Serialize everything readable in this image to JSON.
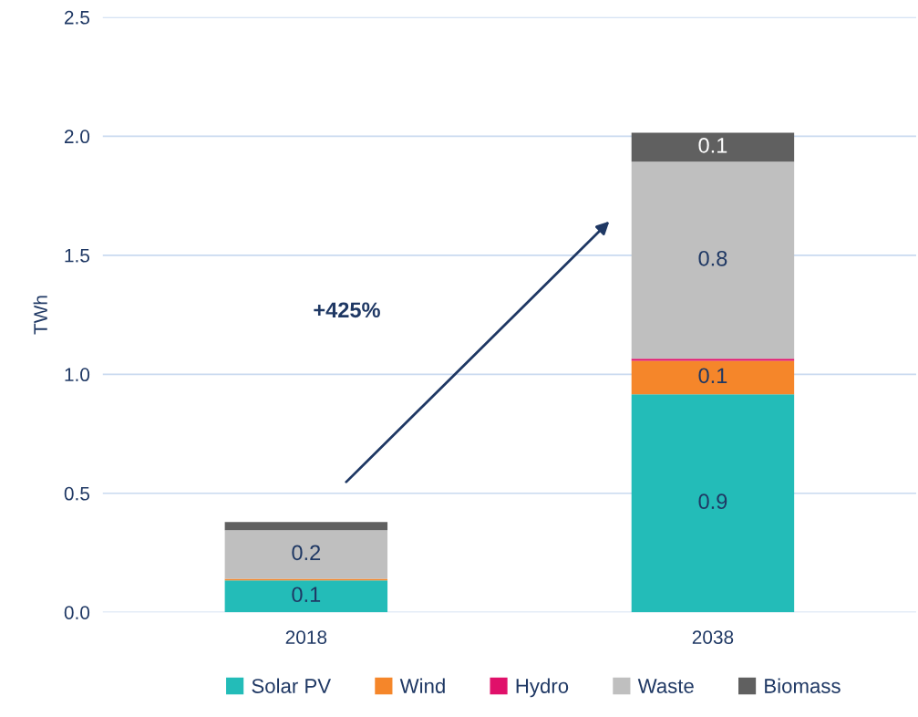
{
  "chart_data": {
    "type": "bar",
    "stacked": true,
    "ylabel": "TWh",
    "categories": [
      "2018",
      "2038"
    ],
    "series": [
      {
        "name": "Solar PV",
        "color": "#23bcb8",
        "values": [
          0.134,
          0.916
        ],
        "value_labels": [
          "0.1",
          "0.9"
        ]
      },
      {
        "name": "Wind",
        "color": "#f5862a",
        "values": [
          0.007,
          0.141
        ],
        "value_labels": [
          null,
          "0.1"
        ]
      },
      {
        "name": "Hydro",
        "color": "#e0106a",
        "values": [
          null,
          0.008
        ],
        "value_labels": [
          null,
          null
        ]
      },
      {
        "name": "Waste",
        "color": "#bfbfbf",
        "values": [
          0.204,
          0.828
        ],
        "value_labels": [
          "0.2",
          "0.8"
        ]
      },
      {
        "name": "Biomass",
        "color": "#606060",
        "values": [
          0.034,
          0.122
        ],
        "value_labels": [
          null,
          "0.1"
        ]
      }
    ],
    "ylim": [
      0,
      2.5
    ],
    "yticks": [
      {
        "value": 0,
        "label": "0.0"
      },
      {
        "value": 0.5,
        "label": "0.5"
      },
      {
        "value": 1,
        "label": "1.0"
      },
      {
        "value": 1.5,
        "label": "1.5"
      },
      {
        "value": 2,
        "label": "2.0"
      },
      {
        "value": 2.5,
        "label": "2.5"
      }
    ],
    "grid": "y",
    "legend": "bottom",
    "annotations": [
      "+425%"
    ]
  }
}
